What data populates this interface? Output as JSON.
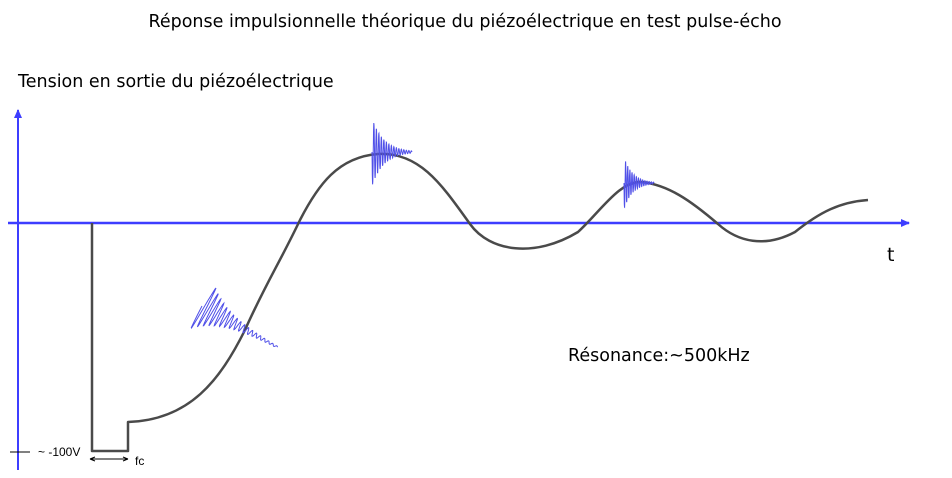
{
  "title": "Réponse impulsionnelle théorique du piézoélectrique en test pulse-écho",
  "y_axis_label": "Tension en sortie du piézoélectrique",
  "x_axis_label": "t",
  "resonance_label": "Résonance:",
  "resonance_value": "~500kHz",
  "voltage_marker": "~ -100V",
  "duration_marker": "fc",
  "colors": {
    "axis": "#3d3dff",
    "curve": "#4a4a4a",
    "burst": "#5050e8",
    "text": "#000000"
  }
}
